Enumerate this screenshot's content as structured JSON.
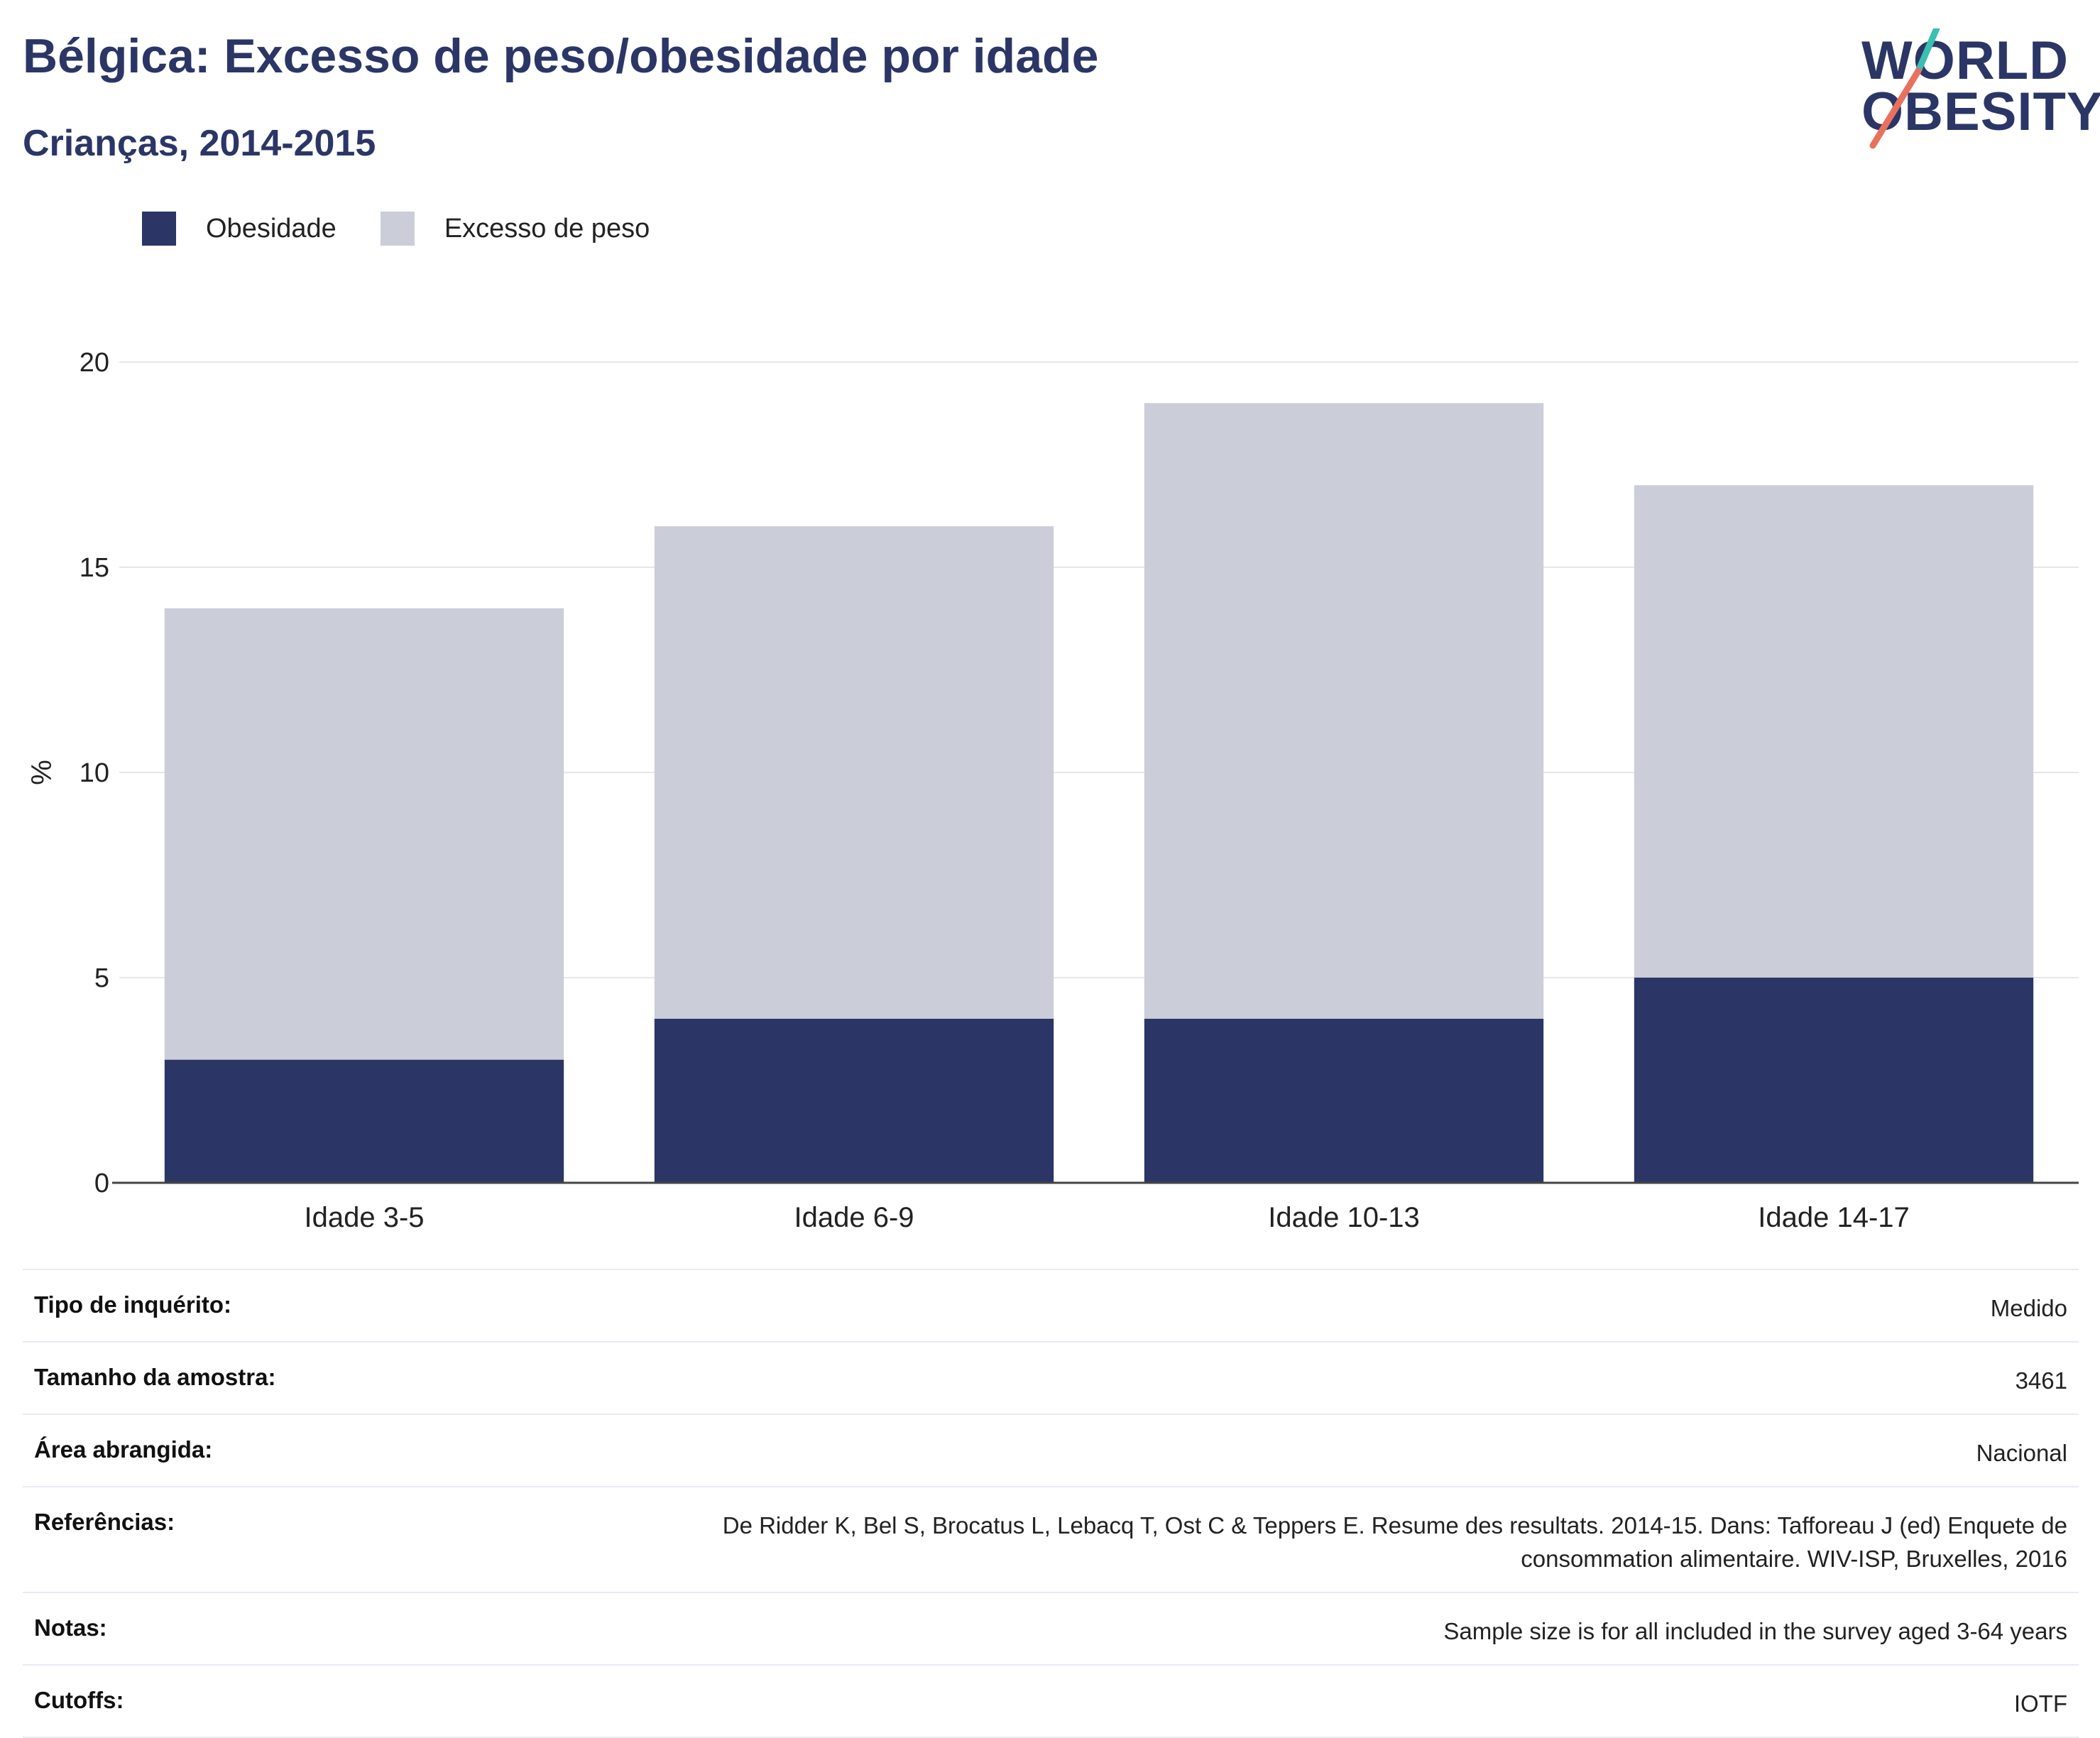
{
  "header": {
    "title": "Bélgica: Excesso de peso/obesidade por idade",
    "subtitle": "Crianças, 2014-2015"
  },
  "logo": {
    "line1": "WORLD",
    "line2": "OBESITY",
    "accent_teal": "#3bbfb2",
    "accent_coral": "#e8715e"
  },
  "colors": {
    "obesity": "#2b3666",
    "overweight": "#cbcdd8",
    "axis": "#444444",
    "grid": "#e6e7ec"
  },
  "chart_data": {
    "type": "bar",
    "stacked": true,
    "categories": [
      "Idade 3-5",
      "Idade 6-9",
      "Idade 10-13",
      "Idade 14-17"
    ],
    "series": [
      {
        "name": "Obesidade",
        "values": [
          3,
          4,
          4,
          5
        ]
      },
      {
        "name": "Excesso de peso",
        "values": [
          11,
          12,
          15,
          12
        ]
      }
    ],
    "totals": [
      14,
      16,
      19,
      17
    ],
    "ylabel": "%",
    "ylim": [
      0,
      20
    ],
    "yticks": [
      0,
      5,
      10,
      15,
      20
    ],
    "grid": true,
    "legend_position": "top-left"
  },
  "info": [
    {
      "label": "Tipo de inquérito:",
      "value": "Medido"
    },
    {
      "label": "Tamanho da amostra:",
      "value": "3461"
    },
    {
      "label": "Área abrangida:",
      "value": "Nacional"
    },
    {
      "label": "Referências:",
      "value": "De Ridder K, Bel S, Brocatus L, Lebacq T, Ost C & Teppers E. Resume des resultats. 2014-15. Dans: Tafforeau J (ed) Enquete de consommation alimentaire. WIV-ISP, Bruxelles, 2016"
    },
    {
      "label": "Notas:",
      "value": "Sample size is for all included in the survey aged 3-64 years"
    },
    {
      "label": "Cutoffs:",
      "value": "IOTF"
    }
  ]
}
